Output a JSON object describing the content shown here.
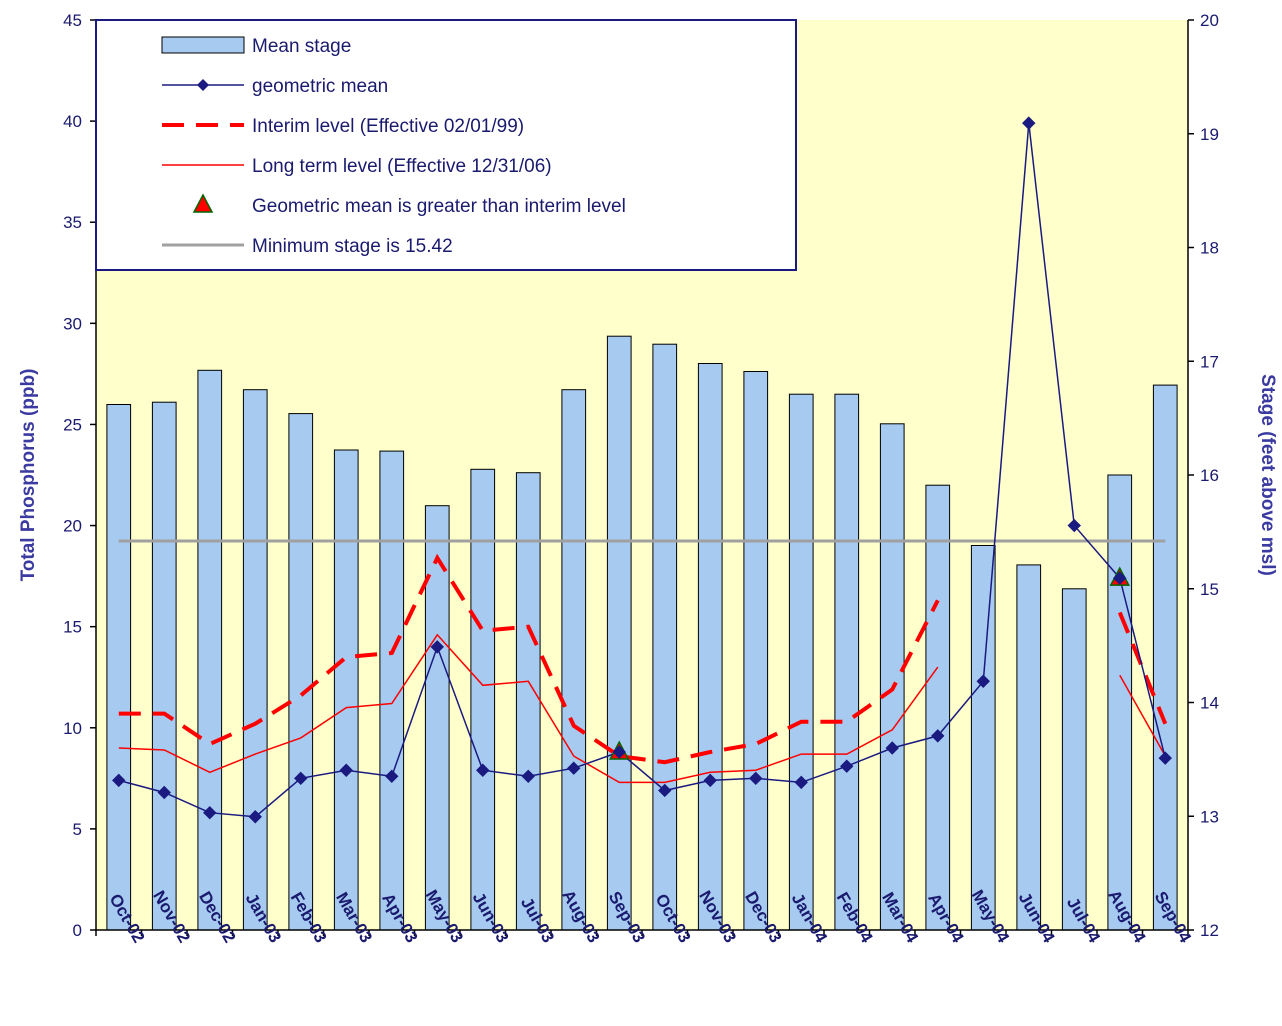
{
  "chart_data": {
    "type": "bar",
    "categories": [
      "Oct-02",
      "Nov-02",
      "Dec-02",
      "Jan-03",
      "Feb-03",
      "Mar-03",
      "Apr-03",
      "May-03",
      "Jun-03",
      "Jul-03",
      "Aug-03",
      "Sep-03",
      "Oct-03",
      "Nov-03",
      "Dec-03",
      "Jan-04",
      "Feb-04",
      "Mar-04",
      "Apr-04",
      "May-04",
      "Jun-04",
      "Jul-04",
      "Aug-04",
      "Sep-04"
    ],
    "ylabel_left": "Total Phosphorus (ppb)",
    "ylabel_right": "Stage (feet above msl)",
    "ylim_left": [
      0,
      45
    ],
    "ylim_right": [
      12,
      20
    ],
    "yticks_left": [
      "0",
      "5",
      "10",
      "15",
      "20",
      "25",
      "30",
      "35",
      "40",
      "45"
    ],
    "yticks_right": [
      "12",
      "13",
      "14",
      "15",
      "16",
      "17",
      "18",
      "19",
      "20"
    ],
    "grid": false,
    "legend_position": "top-left",
    "colors": {
      "plot_background": "#ffffcc",
      "bar_fill": "#a6caf0",
      "bar_stroke": "#000000",
      "geomean": "#1a1a80",
      "interim": "#ff0000",
      "longterm": "#ff0000",
      "exceed_fill": "#ff0000",
      "exceed_stroke": "#006600",
      "min_stage": "#a0a0a0",
      "axis": "#000000"
    },
    "series": [
      {
        "name": "Mean stage",
        "kind": "bar",
        "axis": "right",
        "values": [
          16.62,
          16.64,
          16.92,
          16.75,
          16.54,
          16.22,
          16.21,
          15.73,
          16.05,
          16.02,
          16.75,
          17.22,
          17.15,
          16.98,
          16.91,
          16.71,
          16.71,
          16.45,
          15.91,
          15.38,
          15.21,
          15.0,
          16.0,
          16.79
        ]
      },
      {
        "name": "geometric mean",
        "kind": "line-marker",
        "axis": "left",
        "values": [
          7.4,
          6.8,
          5.8,
          5.6,
          7.5,
          7.9,
          7.6,
          14.0,
          7.9,
          7.6,
          8.0,
          8.8,
          6.9,
          7.4,
          7.5,
          7.3,
          8.1,
          9.0,
          9.6,
          12.3,
          39.9,
          20.0,
          17.4,
          8.5
        ]
      },
      {
        "name": "Interim level (Effective 02/01/99)",
        "kind": "dashed-line",
        "axis": "left",
        "values": [
          10.7,
          10.7,
          9.2,
          10.2,
          11.6,
          13.5,
          13.7,
          18.4,
          14.8,
          15.0,
          10.1,
          8.6,
          8.3,
          8.8,
          9.2,
          10.3,
          10.3,
          11.9,
          16.3,
          null,
          null,
          null,
          15.7,
          10.2
        ]
      },
      {
        "name": "Long term level (Effective 12/31/06)",
        "kind": "line",
        "axis": "left",
        "values": [
          9.0,
          8.9,
          7.8,
          8.7,
          9.5,
          11.0,
          11.2,
          14.6,
          12.1,
          12.3,
          8.6,
          7.3,
          7.3,
          7.8,
          7.9,
          8.7,
          8.7,
          9.9,
          13.0,
          null,
          null,
          null,
          12.6,
          8.6
        ]
      },
      {
        "name": "Geometric mean is greater than interim level",
        "kind": "marker",
        "axis": "left",
        "points": [
          {
            "category": "Sep-03",
            "value": 8.8
          },
          {
            "category": "Aug-04",
            "value": 17.4
          }
        ]
      },
      {
        "name": "Minimum stage is 15.42",
        "kind": "hline",
        "axis": "right",
        "value": 15.42
      }
    ]
  }
}
